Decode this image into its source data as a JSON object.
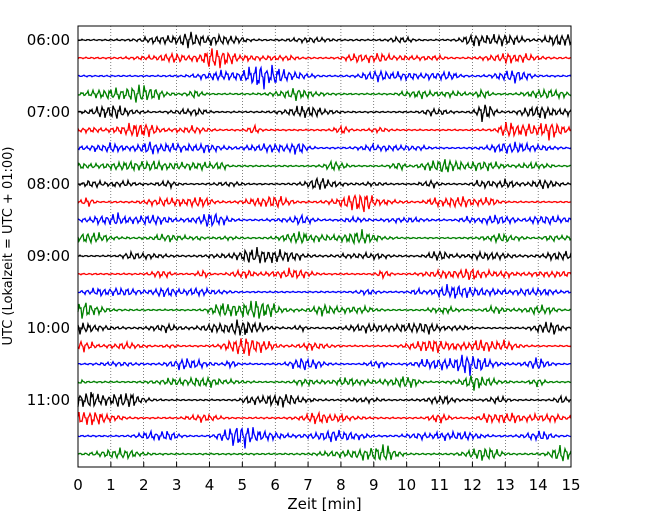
{
  "chart_data": {
    "type": "line",
    "title": "",
    "xlabel": "Zeit  [min]",
    "ylabel": "UTC (Lokalzeit = UTC + 01:00)",
    "xlim": [
      0,
      15
    ],
    "x_ticks": [
      "0",
      "1",
      "2",
      "3",
      "4",
      "5",
      "6",
      "7",
      "8",
      "9",
      "10",
      "11",
      "12",
      "13",
      "14",
      "15"
    ],
    "y_ticks": [
      "06:00",
      "07:00",
      "08:00",
      "09:00",
      "10:00",
      "11:00"
    ],
    "trace_start_times": [
      "06:00",
      "06:15",
      "06:30",
      "06:45",
      "07:00",
      "07:15",
      "07:30",
      "07:45",
      "08:00",
      "08:15",
      "08:30",
      "08:45",
      "09:00",
      "09:15",
      "09:30",
      "09:45",
      "10:00",
      "10:15",
      "10:30",
      "10:45",
      "11:00",
      "11:15",
      "11:30",
      "11:45"
    ],
    "trace_duration_min": 15,
    "color_cycle": [
      "#000000",
      "#ff0000",
      "#0000ff",
      "#008000"
    ],
    "grid": "vertical dotted lines at each minute"
  }
}
